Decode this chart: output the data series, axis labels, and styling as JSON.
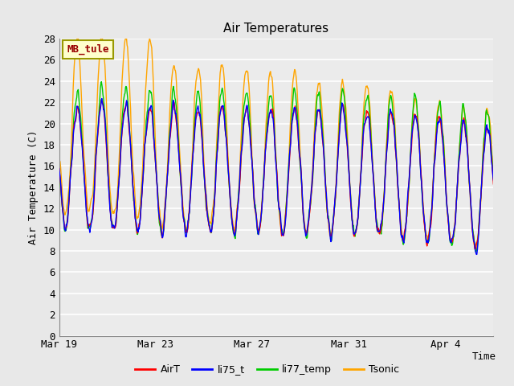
{
  "title": "Air Temperatures",
  "xlabel": "Time",
  "ylabel": "Air Temperature (C)",
  "ylim": [
    0,
    28
  ],
  "yticks": [
    0,
    2,
    4,
    6,
    8,
    10,
    12,
    14,
    16,
    18,
    20,
    22,
    24,
    26,
    28
  ],
  "colors": {
    "AirT": "#ff0000",
    "li75_t": "#0000ff",
    "li77_temp": "#00cc00",
    "Tsonic": "#ffa500"
  },
  "legend_labels": [
    "AirT",
    "li75_t",
    "li77_temp",
    "Tsonic"
  ],
  "annotation_text": "MB_tule",
  "annotation_color": "#990000",
  "annotation_bg": "#ffffcc",
  "annotation_border": "#999900",
  "bg_color": "#e8e8e8",
  "plot_bg": "#ebebeb",
  "grid_color": "#ffffff",
  "x_tick_labels": [
    "Mar 19",
    "Mar 23",
    "Mar 27",
    "Mar 31",
    "Apr 4"
  ],
  "x_tick_positions": [
    0,
    4,
    8,
    12,
    16
  ],
  "total_days": 18,
  "line_width": 1.0
}
